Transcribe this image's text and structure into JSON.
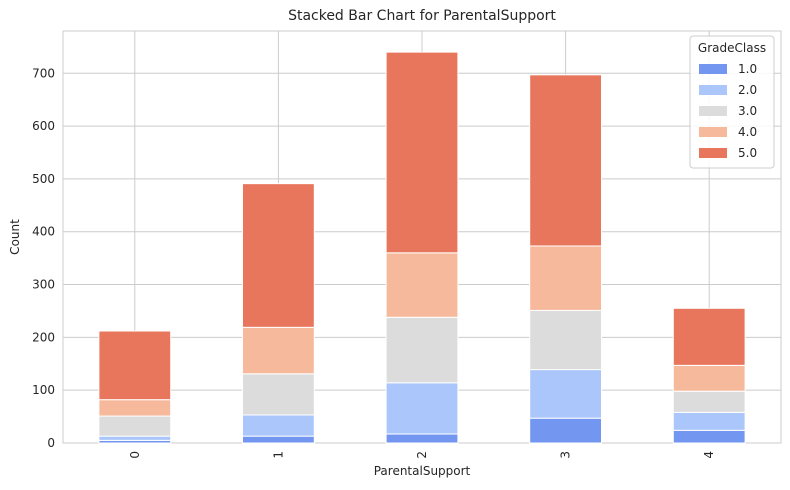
{
  "chart_data": {
    "type": "bar",
    "stacked": true,
    "title": "Stacked Bar Chart for ParentalSupport",
    "xlabel": "ParentalSupport",
    "ylabel": "Count",
    "categories": [
      "0",
      "1",
      "2",
      "3",
      "4"
    ],
    "ylim": [
      0,
      780
    ],
    "yticks": [
      0,
      100,
      200,
      300,
      400,
      500,
      600,
      700
    ],
    "grid": true,
    "legend": {
      "title": "GradeClass",
      "placement": "top-right"
    },
    "series": [
      {
        "name": "1.0",
        "color": "#7396f0",
        "values": [
          5,
          13,
          17,
          47,
          24
        ]
      },
      {
        "name": "2.0",
        "color": "#aac6fb",
        "values": [
          8,
          40,
          97,
          92,
          34
        ]
      },
      {
        "name": "3.0",
        "color": "#dcdcdc",
        "values": [
          38,
          78,
          124,
          112,
          40
        ]
      },
      {
        "name": "4.0",
        "color": "#f6b99c",
        "values": [
          31,
          88,
          122,
          122,
          49
        ]
      },
      {
        "name": "5.0",
        "color": "#e8765c",
        "values": [
          130,
          272,
          380,
          324,
          108
        ]
      }
    ]
  }
}
